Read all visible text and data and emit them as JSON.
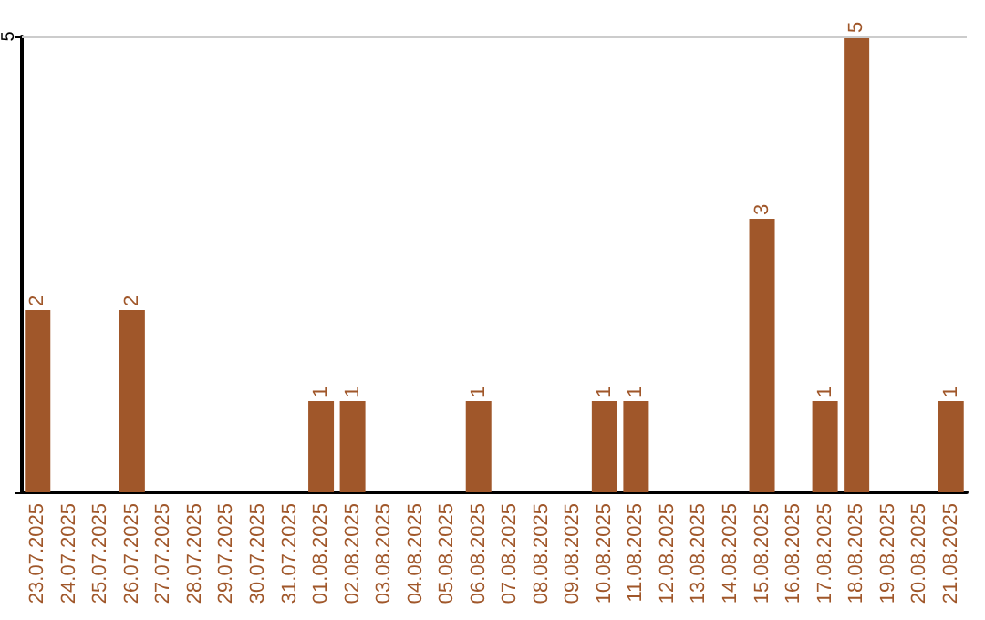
{
  "chart_data": {
    "type": "bar",
    "categories": [
      "23.07.2025",
      "24.07.2025",
      "25.07.2025",
      "26.07.2025",
      "27.07.2025",
      "28.07.2025",
      "29.07.2025",
      "30.07.2025",
      "31.07.2025",
      "01.08.2025",
      "02.08.2025",
      "03.08.2025",
      "04.08.2025",
      "05.08.2025",
      "06.08.2025",
      "07.08.2025",
      "08.08.2025",
      "09.08.2025",
      "10.08.2025",
      "11.08.2025",
      "12.08.2025",
      "13.08.2025",
      "14.08.2025",
      "15.08.2025",
      "16.08.2025",
      "17.08.2025",
      "18.08.2025",
      "19.08.2025",
      "20.08.2025",
      "21.08.2025"
    ],
    "values": [
      2,
      0,
      0,
      2,
      0,
      0,
      0,
      0,
      0,
      1,
      1,
      0,
      0,
      0,
      1,
      0,
      0,
      0,
      1,
      1,
      0,
      0,
      0,
      3,
      0,
      1,
      5,
      0,
      0,
      1
    ],
    "value_labels": [
      "2",
      null,
      null,
      "2",
      null,
      null,
      null,
      null,
      null,
      "1",
      "1",
      null,
      null,
      null,
      "1",
      null,
      null,
      null,
      "1",
      "1",
      null,
      null,
      null,
      "3",
      null,
      "1",
      "5",
      null,
      null,
      "1"
    ],
    "color": "#a0572a",
    "ylim": [
      0,
      5
    ],
    "yticks": [
      {
        "value": 0,
        "label": null
      },
      5
    ],
    "ref_lines": [
      {
        "axis": "y",
        "value": 5,
        "color": "#cccccc"
      }
    ]
  }
}
